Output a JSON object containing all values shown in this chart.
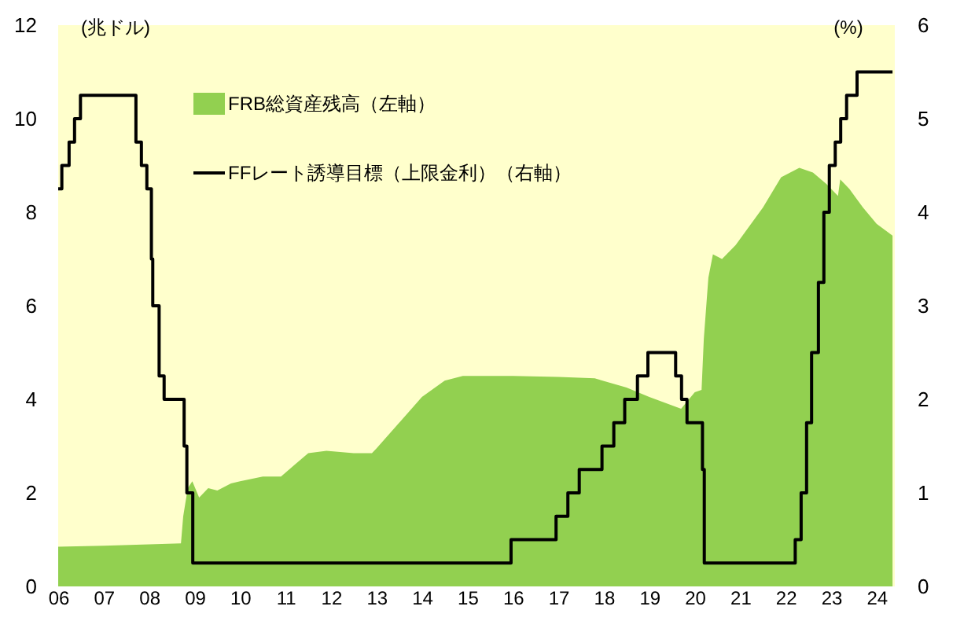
{
  "chart_data": {
    "type": "area",
    "legend": "top left",
    "grid": false,
    "marker": "none",
    "ylabel": "(兆ドル)",
    "y2label": "(%)",
    "xlim": [
      2006,
      2024.4
    ],
    "xticks": [
      {
        "value": 2006,
        "label": "06"
      },
      {
        "value": 2007,
        "label": "07"
      },
      {
        "value": 2008,
        "label": "08"
      },
      {
        "value": 2009,
        "label": "09"
      },
      {
        "value": 2010,
        "label": "10"
      },
      {
        "value": 2011,
        "label": "11"
      },
      {
        "value": 2012,
        "label": "12"
      },
      {
        "value": 2013,
        "label": "13"
      },
      {
        "value": 2014,
        "label": "14"
      },
      {
        "value": 2015,
        "label": "15"
      },
      {
        "value": 2016,
        "label": "16"
      },
      {
        "value": 2017,
        "label": "17"
      },
      {
        "value": 2018,
        "label": "18"
      },
      {
        "value": 2019,
        "label": "19"
      },
      {
        "value": 2020,
        "label": "20"
      },
      {
        "value": 2021,
        "label": "21"
      },
      {
        "value": 2022,
        "label": "22"
      },
      {
        "value": 2023,
        "label": "23"
      },
      {
        "value": 2024,
        "label": "24"
      }
    ],
    "ylim": [
      0,
      12
    ],
    "yticks": [
      0,
      2,
      4,
      6,
      8,
      10,
      12
    ],
    "y2lim": [
      0,
      6
    ],
    "y2ticks": [
      0,
      1,
      2,
      3,
      4,
      5,
      6
    ],
    "series": [
      {
        "name": "FRB総資産残高（左軸）",
        "color": "#92d050",
        "axis": "y",
        "x": [
          2006.0,
          2007.0,
          2008.0,
          2008.7,
          2008.75,
          2008.85,
          2008.95,
          2009.1,
          2009.3,
          2009.5,
          2009.8,
          2010.0,
          2010.5,
          2010.9,
          2011.2,
          2011.5,
          2011.9,
          2012.5,
          2012.9,
          2013.0,
          2013.5,
          2014.0,
          2014.5,
          2014.9,
          2016.0,
          2017.0,
          2017.8,
          2018.5,
          2019.0,
          2019.7,
          2020.0,
          2020.15,
          2020.2,
          2020.3,
          2020.4,
          2020.6,
          2020.9,
          2021.5,
          2021.9,
          2022.3,
          2022.6,
          2022.9,
          2023.15,
          2023.2,
          2023.4,
          2023.7,
          2024.0,
          2024.35
        ],
        "values": [
          0.85,
          0.87,
          0.9,
          0.92,
          1.5,
          2.1,
          2.25,
          1.9,
          2.1,
          2.05,
          2.2,
          2.25,
          2.35,
          2.35,
          2.6,
          2.85,
          2.9,
          2.85,
          2.85,
          2.95,
          3.5,
          4.05,
          4.4,
          4.5,
          4.5,
          4.48,
          4.45,
          4.25,
          4.05,
          3.8,
          4.15,
          4.2,
          5.3,
          6.6,
          7.1,
          7.0,
          7.3,
          8.1,
          8.75,
          8.95,
          8.85,
          8.6,
          8.35,
          8.7,
          8.5,
          8.1,
          7.75,
          7.5
        ]
      },
      {
        "name": "FFレート誘導目標（上限金利）（右軸）",
        "type": "step",
        "color": "#000000",
        "axis": "y2",
        "x": [
          2006.0,
          2006.08,
          2006.24,
          2006.36,
          2006.49,
          2007.71,
          2007.83,
          2007.95,
          2008.05,
          2008.08,
          2008.22,
          2008.33,
          2008.77,
          2008.83,
          2008.96,
          2015.96,
          2016.95,
          2017.21,
          2017.46,
          2017.96,
          2018.22,
          2018.46,
          2018.74,
          2018.97,
          2019.58,
          2019.71,
          2019.83,
          2020.17,
          2020.21,
          2022.21,
          2022.34,
          2022.46,
          2022.57,
          2022.72,
          2022.84,
          2022.96,
          2023.09,
          2023.21,
          2023.34,
          2023.57,
          2024.35
        ],
        "values": [
          4.25,
          4.5,
          4.75,
          5.0,
          5.25,
          4.75,
          4.5,
          4.25,
          3.5,
          3.0,
          2.25,
          2.0,
          1.5,
          1.0,
          0.25,
          0.5,
          0.75,
          1.0,
          1.25,
          1.5,
          1.75,
          2.0,
          2.25,
          2.5,
          2.25,
          2.0,
          1.75,
          1.25,
          0.25,
          0.5,
          1.0,
          1.75,
          2.5,
          3.25,
          4.0,
          4.5,
          4.75,
          5.0,
          5.25,
          5.5,
          5.5
        ]
      }
    ]
  }
}
